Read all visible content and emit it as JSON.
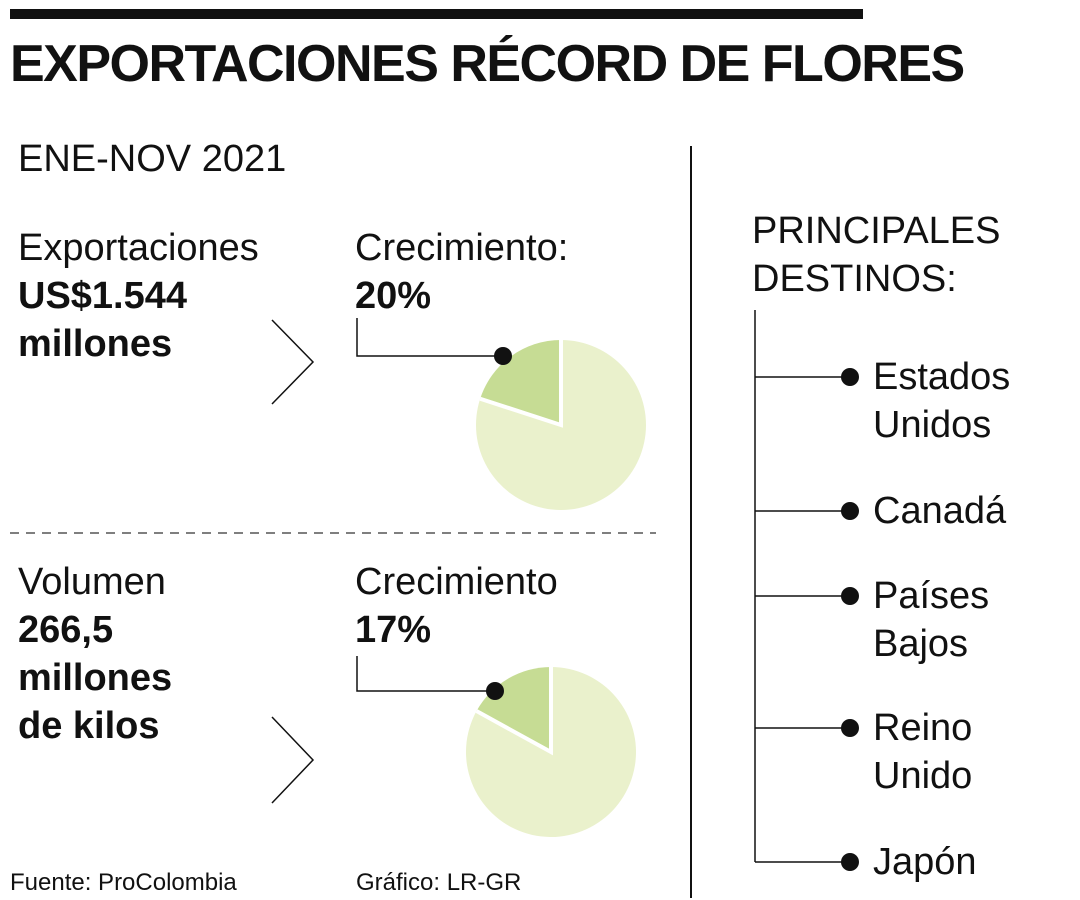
{
  "title": "EXPORTACIONES RÉCORD DE FLORES",
  "period": "ENE-NOV 2021",
  "colors": {
    "pie_share": "#c6dc94",
    "pie_rest": "#eaf1cc",
    "ink": "#111111"
  },
  "sections": [
    {
      "metric_label": "Exportaciones",
      "value_line1": "US$1.544",
      "value_line2": "millones",
      "value_line3": "",
      "growth_label": "Crecimiento:",
      "growth_value": "20%"
    },
    {
      "metric_label": "Volumen",
      "value_line1": "266,5",
      "value_line2": "millones",
      "value_line3": "de kilos",
      "growth_label": "Crecimiento",
      "growth_value": "17%"
    }
  ],
  "destinations": {
    "heading_line1": "PRINCIPALES",
    "heading_line2": "DESTINOS:",
    "items": [
      {
        "line1": "Estados",
        "line2": "Unidos"
      },
      {
        "line1": "Canadá",
        "line2": ""
      },
      {
        "line1": "Países",
        "line2": "Bajos"
      },
      {
        "line1": "Reino",
        "line2": "Unido"
      },
      {
        "line1": "Japón",
        "line2": ""
      }
    ]
  },
  "source": "Fuente: ProColombia",
  "credit": "Gráfico: LR-GR",
  "chart_data": [
    {
      "type": "pie",
      "categories": [
        "Crecimiento",
        ""
      ],
      "values": [
        20,
        80
      ]
    },
    {
      "type": "pie",
      "categories": [
        "Crecimiento",
        ""
      ],
      "values": [
        17,
        83
      ]
    }
  ]
}
